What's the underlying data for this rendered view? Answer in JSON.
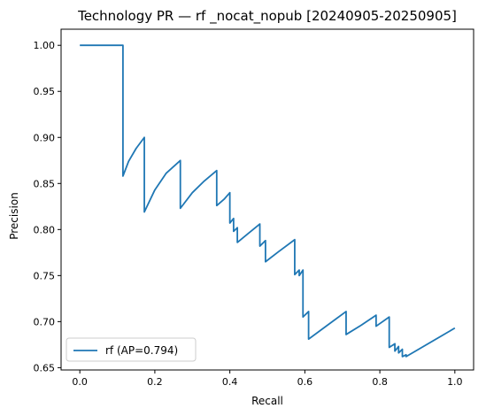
{
  "chart_data": {
    "type": "line",
    "title": "Technology PR — rf _nocat_nopub [20240905-20250905]",
    "xlabel": "Recall",
    "ylabel": "Precision",
    "xlim": [
      -0.05,
      1.05
    ],
    "ylim": [
      0.6475,
      1.0175
    ],
    "xticks": [
      0.0,
      0.2,
      0.4,
      0.6,
      0.8,
      1.0
    ],
    "xtick_labels": [
      "0.0",
      "0.2",
      "0.4",
      "0.6",
      "0.8",
      "1.0"
    ],
    "yticks": [
      0.65,
      0.7,
      0.75,
      0.8,
      0.85,
      0.9,
      0.95,
      1.0
    ],
    "ytick_labels": [
      "0.65",
      "0.70",
      "0.75",
      "0.80",
      "0.85",
      "0.90",
      "0.95",
      "1.00"
    ],
    "grid": false,
    "legend_position": "lower-left",
    "colors": {
      "line": "#1f77b4",
      "axes": "#000000"
    },
    "series": [
      {
        "name": "rf (AP=0.794)",
        "x": [
          0.0,
          0.115,
          0.115,
          0.13,
          0.15,
          0.172,
          0.172,
          0.2,
          0.23,
          0.268,
          0.268,
          0.3,
          0.33,
          0.365,
          0.365,
          0.385,
          0.4,
          0.4,
          0.41,
          0.41,
          0.42,
          0.42,
          0.45,
          0.48,
          0.48,
          0.495,
          0.495,
          0.53,
          0.573,
          0.573,
          0.585,
          0.585,
          0.595,
          0.595,
          0.61,
          0.61,
          0.66,
          0.71,
          0.71,
          0.75,
          0.79,
          0.79,
          0.825,
          0.825,
          0.84,
          0.84,
          0.85,
          0.85,
          0.86,
          0.86,
          0.87,
          0.87,
          1.0
        ],
        "y": [
          1.0,
          1.0,
          0.858,
          0.874,
          0.888,
          0.9,
          0.819,
          0.843,
          0.861,
          0.875,
          0.823,
          0.84,
          0.852,
          0.864,
          0.826,
          0.833,
          0.84,
          0.807,
          0.812,
          0.798,
          0.802,
          0.786,
          0.796,
          0.806,
          0.782,
          0.788,
          0.765,
          0.776,
          0.789,
          0.751,
          0.756,
          0.75,
          0.756,
          0.705,
          0.711,
          0.681,
          0.696,
          0.711,
          0.686,
          0.696,
          0.707,
          0.695,
          0.705,
          0.672,
          0.676,
          0.668,
          0.673,
          0.666,
          0.67,
          0.662,
          0.664,
          0.662,
          0.693
        ]
      }
    ]
  }
}
